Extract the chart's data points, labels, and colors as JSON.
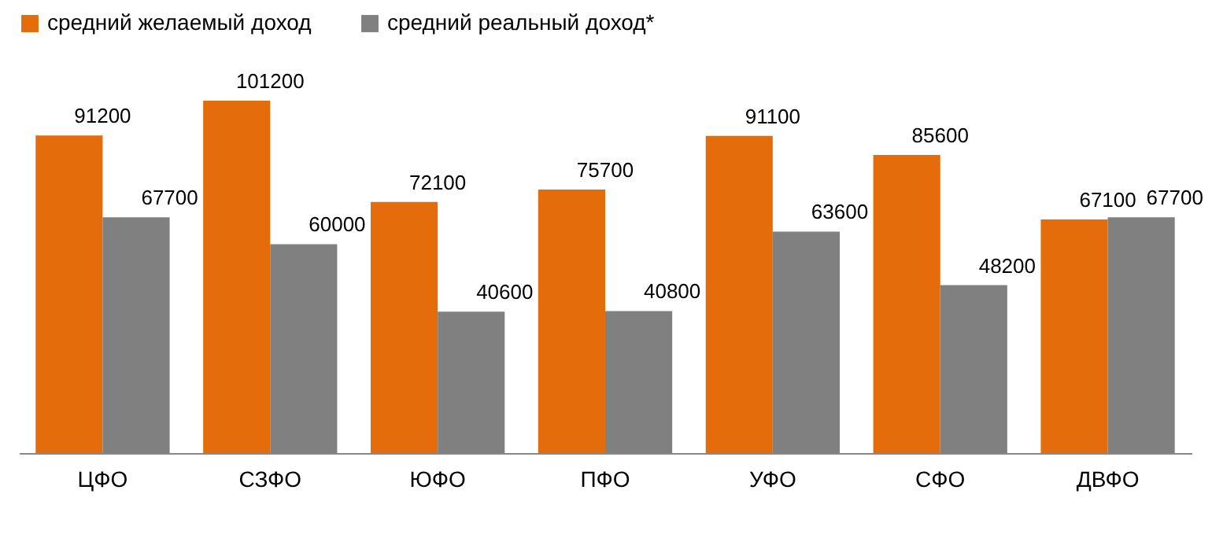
{
  "chart_data": {
    "type": "bar",
    "categories": [
      "ЦФО",
      "СЗФО",
      "ЮФО",
      "ПФО",
      "УФО",
      "СФО",
      "ДВФО"
    ],
    "series": [
      {
        "name": "средний желаемый доход",
        "color": "#e46c0a",
        "values": [
          91200,
          101200,
          72100,
          75700,
          91100,
          85600,
          67100
        ]
      },
      {
        "name": "средний реальный доход*",
        "color": "#808080",
        "values": [
          67700,
          60000,
          40600,
          40800,
          63600,
          48200,
          67700
        ]
      }
    ],
    "data_labels": true,
    "legend": "top",
    "grid": false
  }
}
